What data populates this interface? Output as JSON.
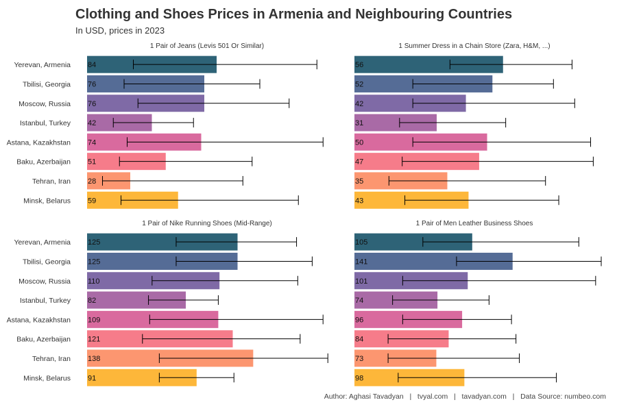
{
  "title": "Clothing and Shoes Prices in Armenia and Neighbouring Countries",
  "subtitle": "In USD, prices in 2023",
  "caption": "Author: Aghasi Tavadyan   |   tvyal.com   |   tavadyan.com   |   Data Source: numbeo.com",
  "cities": [
    "Yerevan, Armenia",
    "Tbilisi, Georgia",
    "Moscow, Russia",
    "Istanbul, Turkey",
    "Astana, Kazakhstan",
    "Baku, Azerbaijan",
    "Tehran, Iran",
    "Minsk, Belarus"
  ],
  "colors": [
    "#2e6377",
    "#556c96",
    "#7f6aa6",
    "#a96aa6",
    "#d96a9e",
    "#f67c8a",
    "#fc9670",
    "#fdb73a"
  ],
  "chart_data": [
    {
      "type": "bar",
      "title": "1 Pair of Jeans (Levis 501 Or Similar)",
      "categories": [
        "Yerevan, Armenia",
        "Tbilisi, Georgia",
        "Moscow, Russia",
        "Istanbul, Turkey",
        "Astana, Kazakhstan",
        "Baku, Azerbaijan",
        "Tehran, Iran",
        "Minsk, Belarus"
      ],
      "values": [
        84,
        76,
        76,
        42,
        74,
        51,
        28,
        59
      ],
      "range_low": [
        30,
        24,
        33,
        17,
        26,
        21,
        10,
        22
      ],
      "range_high": [
        149,
        112,
        131,
        69,
        153,
        107,
        101,
        137
      ],
      "xlim": [
        0,
        160
      ]
    },
    {
      "type": "bar",
      "title": "1 Summer Dress in a Chain Store (Zara, H&M, ...)",
      "categories": [
        "Yerevan, Armenia",
        "Tbilisi, Georgia",
        "Moscow, Russia",
        "Istanbul, Turkey",
        "Astana, Kazakhstan",
        "Baku, Azerbaijan",
        "Tehran, Iran",
        "Minsk, Belarus"
      ],
      "values": [
        56,
        52,
        42,
        31,
        50,
        47,
        35,
        43
      ],
      "range_low": [
        36,
        22,
        22,
        17,
        22,
        18,
        13,
        19
      ],
      "range_high": [
        82,
        75,
        83,
        57,
        89,
        90,
        72,
        77
      ],
      "xlim": [
        0,
        93
      ]
    },
    {
      "type": "bar",
      "title": "1 Pair of Nike Running Shoes (Mid-Range)",
      "categories": [
        "Yerevan, Armenia",
        "Tbilisi, Georgia",
        "Moscow, Russia",
        "Istanbul, Turkey",
        "Astana, Kazakhstan",
        "Baku, Azerbaijan",
        "Tehran, Iran",
        "Minsk, Belarus"
      ],
      "values": [
        125,
        125,
        110,
        82,
        109,
        121,
        138,
        91
      ],
      "range_low": [
        74,
        74,
        54,
        51,
        52,
        46,
        60,
        60
      ],
      "range_high": [
        174,
        187,
        175,
        109,
        196,
        177,
        200,
        122
      ],
      "xlim": [
        0,
        205
      ]
    },
    {
      "type": "bar",
      "title": "1 Pair of Men Leather Business Shoes",
      "categories": [
        "Yerevan, Armenia",
        "Tbilisi, Georgia",
        "Moscow, Russia",
        "Istanbul, Turkey",
        "Astana, Kazakhstan",
        "Baku, Azerbaijan",
        "Tehran, Iran",
        "Minsk, Belarus"
      ],
      "values": [
        105,
        141,
        101,
        74,
        96,
        84,
        73,
        98
      ],
      "range_low": [
        61,
        91,
        43,
        34,
        43,
        30,
        30,
        39
      ],
      "range_high": [
        200,
        220,
        215,
        120,
        140,
        144,
        147,
        180
      ],
      "xlim": [
        0,
        220
      ]
    }
  ]
}
